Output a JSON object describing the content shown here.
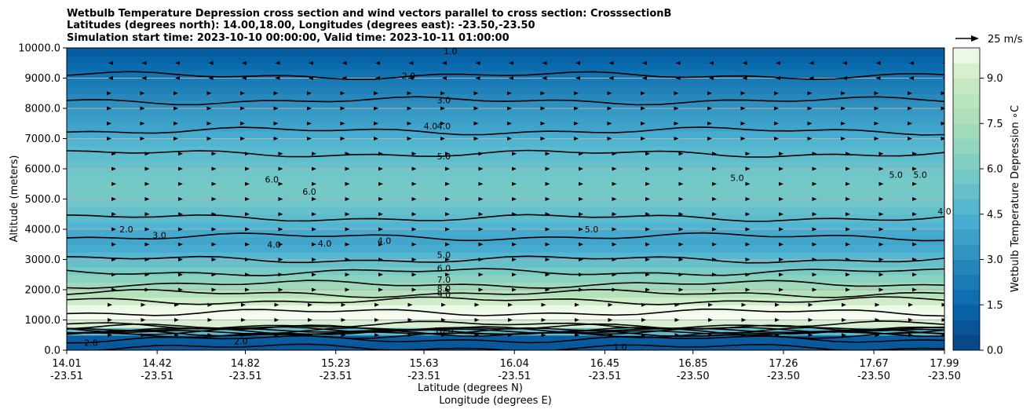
{
  "chart_data": {
    "type": "heatmap",
    "title_lines": [
      "Wetbulb Temperature Depression cross section and wind vectors parallel to cross section: CrosssectionB",
      "Latitudes (degrees north): 14.00,18.00, Longitudes (degrees east): -23.50,-23.50",
      "Simulation start time: 2023-10-10 00:00:00, Valid time: 2023-10-11 01:00:00"
    ],
    "xlabel_lat": "Latitude (degrees N)",
    "xlabel_lon": "Longitude (degrees E)",
    "ylabel": "Altitude (meters)",
    "ylim": [
      0,
      10000
    ],
    "y_ticks": [
      0,
      1000,
      2000,
      3000,
      4000,
      5000,
      6000,
      7000,
      8000,
      9000,
      10000
    ],
    "y_tick_labels": [
      "0.0",
      "1000.0",
      "2000.0",
      "3000.0",
      "4000.0",
      "5000.0",
      "6000.0",
      "7000.0",
      "8000.0",
      "9000.0",
      "10000.0"
    ],
    "x_tick_lat": [
      "14.01",
      "14.42",
      "14.82",
      "15.23",
      "15.63",
      "16.04",
      "16.45",
      "16.85",
      "17.26",
      "17.67",
      "17.99"
    ],
    "x_tick_lon": [
      "-23.51",
      "-23.51",
      "-23.51",
      "-23.51",
      "-23.51",
      "-23.51",
      "-23.51",
      "-23.50",
      "-23.50",
      "-23.50",
      "-23.50"
    ],
    "colorbar": {
      "label": "Wetbulb Temperature Depression ∘C",
      "range": [
        0,
        10
      ],
      "ticks": [
        "0.0",
        "1.5",
        "3.0",
        "4.5",
        "6.0",
        "7.5",
        "9.0"
      ],
      "tick_values": [
        0,
        1.5,
        3.0,
        4.5,
        6.0,
        7.5,
        9.0
      ]
    },
    "vector_key": {
      "label": "25 m/s",
      "speed": 25
    },
    "profile_altitudes": [
      0,
      250,
      500,
      750,
      1000,
      1250,
      1500,
      1750,
      2000,
      2250,
      2500,
      2750,
      3000,
      3250,
      3500,
      3750,
      4000,
      4250,
      4500,
      4750,
      5000,
      5250,
      5500,
      5750,
      6000,
      6250,
      6500,
      6750,
      7000,
      7250,
      7500,
      7750,
      8000,
      8250,
      8500,
      8750,
      9000,
      9250,
      9500,
      9750,
      10000
    ],
    "profile_depression": [
      1.2,
      0.6,
      1.5,
      8.5,
      10.0,
      10.0,
      9.6,
      8.5,
      7.5,
      6.8,
      6.2,
      5.6,
      5.0,
      4.4,
      4.0,
      4.0,
      4.3,
      4.8,
      5.2,
      5.5,
      5.7,
      5.8,
      5.8,
      5.7,
      5.5,
      5.2,
      5.0,
      4.8,
      4.4,
      4.0,
      3.8,
      3.6,
      3.3,
      3.0,
      2.7,
      2.4,
      2.1,
      1.8,
      1.5,
      1.2,
      1.0
    ],
    "contour_levels": [
      "1.0",
      "2.0",
      "3.0",
      "4.0",
      "5.0",
      "6.0",
      "7.0",
      "8.0",
      "9.0",
      "10.0"
    ],
    "contour_labels": [
      {
        "text": "1.0",
        "lat": 15.75,
        "alt": 9900
      },
      {
        "text": "2.0",
        "lat": 15.56,
        "alt": 9080
      },
      {
        "text": "3.0",
        "lat": 15.72,
        "alt": 8270
      },
      {
        "text": "4.0",
        "lat": 15.66,
        "alt": 7420
      },
      {
        "text": "4.0",
        "lat": 15.72,
        "alt": 7420
      },
      {
        "text": "5.0",
        "lat": 15.72,
        "alt": 6420
      },
      {
        "text": "6.0",
        "lat": 14.94,
        "alt": 5650
      },
      {
        "text": "6.0",
        "lat": 15.11,
        "alt": 5250
      },
      {
        "text": "2.0",
        "lat": 14.28,
        "alt": 4000
      },
      {
        "text": "3.0",
        "lat": 14.43,
        "alt": 3800
      },
      {
        "text": "4.0",
        "lat": 14.95,
        "alt": 3500
      },
      {
        "text": "4.0",
        "lat": 15.18,
        "alt": 3530
      },
      {
        "text": "4.0",
        "lat": 15.45,
        "alt": 3620
      },
      {
        "text": "5.0",
        "lat": 16.39,
        "alt": 4000
      },
      {
        "text": "5.0",
        "lat": 17.05,
        "alt": 5700
      },
      {
        "text": "5.0",
        "lat": 17.77,
        "alt": 5800
      },
      {
        "text": "5.0",
        "lat": 17.88,
        "alt": 5800
      },
      {
        "text": "4.0",
        "lat": 17.99,
        "alt": 4600
      },
      {
        "text": "5.0",
        "lat": 15.72,
        "alt": 3160
      },
      {
        "text": "6.0",
        "lat": 15.72,
        "alt": 2710
      },
      {
        "text": "7.0",
        "lat": 15.72,
        "alt": 2340
      },
      {
        "text": "8.0",
        "lat": 15.72,
        "alt": 2040
      },
      {
        "text": "9.0",
        "lat": 15.72,
        "alt": 1840
      },
      {
        "text": "10.0",
        "lat": 15.72,
        "alt": 650
      },
      {
        "text": "1.0",
        "lat": 16.52,
        "alt": 100
      },
      {
        "text": "2.0",
        "lat": 14.12,
        "alt": 250
      },
      {
        "text": "2.0",
        "lat": 14.8,
        "alt": 300
      }
    ]
  }
}
